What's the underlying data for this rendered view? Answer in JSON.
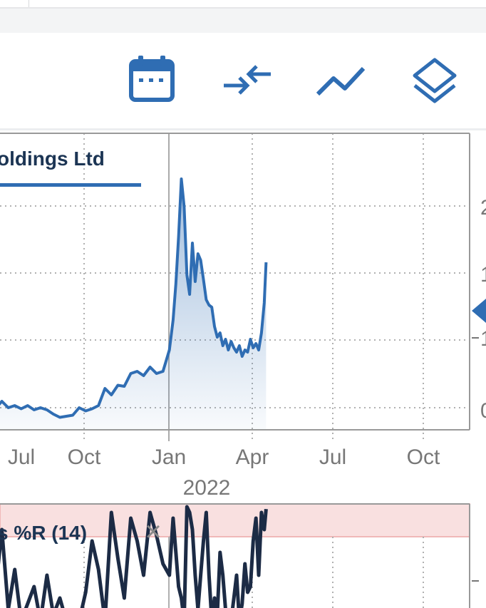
{
  "toolbar": {
    "icons": [
      "calendar-icon",
      "compare-arrows-icon",
      "line-chart-icon",
      "layers-icon"
    ],
    "accent": "#2f6db3"
  },
  "chart_data": [
    {
      "type": "area",
      "title": "oldings Ltd",
      "x_tick_labels": [
        "Jul",
        "Oct",
        "Jan",
        "Apr",
        "Jul",
        "Oct"
      ],
      "year_label": "2022",
      "y_tick_labels": [
        "2",
        "1",
        "1",
        "0"
      ],
      "grid": true,
      "series": [
        {
          "color": "#2f6db3",
          "x": [
            "2021-05-29",
            "2021-06-05",
            "2021-06-12",
            "2021-06-19",
            "2021-06-26",
            "2021-07-03",
            "2021-07-10",
            "2021-07-17",
            "2021-07-24",
            "2021-07-31",
            "2021-08-07",
            "2021-08-14",
            "2021-08-21",
            "2021-08-28",
            "2021-09-04",
            "2021-09-11",
            "2021-09-18",
            "2021-09-25",
            "2021-10-02",
            "2021-10-09",
            "2021-10-16",
            "2021-10-23",
            "2021-10-30",
            "2021-11-06",
            "2021-11-13",
            "2021-11-20",
            "2021-11-27",
            "2021-12-04",
            "2021-12-11",
            "2021-12-18",
            "2021-12-25",
            "2022-01-01",
            "2022-01-05",
            "2022-01-08",
            "2022-01-11",
            "2022-01-14",
            "2022-01-17",
            "2022-01-20",
            "2022-01-23",
            "2022-01-26",
            "2022-01-29",
            "2022-02-01",
            "2022-02-04",
            "2022-02-07",
            "2022-02-10",
            "2022-02-13",
            "2022-02-16",
            "2022-02-19",
            "2022-02-22",
            "2022-02-25",
            "2022-02-28",
            "2022-03-03",
            "2022-03-06",
            "2022-03-09",
            "2022-03-12",
            "2022-03-15",
            "2022-03-18",
            "2022-03-21",
            "2022-03-24",
            "2022-03-27",
            "2022-03-30",
            "2022-04-02",
            "2022-04-05",
            "2022-04-08",
            "2022-04-11",
            "2022-04-14",
            "2022-04-16"
          ],
          "y": [
            0.03,
            0.02,
            0.03,
            0.02,
            0.03,
            0.1,
            0.04,
            0.06,
            0.03,
            0.06,
            0.02,
            0.04,
            0.02,
            -0.02,
            -0.05,
            -0.04,
            -0.03,
            0.04,
            0.01,
            0.03,
            0.06,
            0.22,
            0.16,
            0.25,
            0.24,
            0.36,
            0.38,
            0.34,
            0.42,
            0.36,
            0.38,
            0.58,
            0.86,
            1.2,
            1.64,
            2.18,
            1.92,
            1.28,
            1.1,
            1.58,
            1.22,
            1.48,
            1.42,
            1.24,
            1.05,
            1.0,
            0.98,
            0.8,
            0.7,
            0.74,
            0.62,
            0.68,
            0.58,
            0.66,
            0.6,
            0.56,
            0.62,
            0.52,
            0.58,
            0.56,
            0.68,
            0.6,
            0.64,
            0.58,
            0.74,
            1.02,
            1.4
          ]
        }
      ]
    },
    {
      "type": "line",
      "title": "s %R (14)",
      "close_symbol": "×",
      "series": [
        {
          "color": "#1c2b45",
          "y": [
            -60,
            -80,
            -40,
            -100,
            -75,
            -20,
            -90,
            -55,
            -100,
            -85,
            -70,
            -100,
            -60,
            -95,
            -80,
            -100,
            -100,
            -100,
            -75,
            -30,
            -55,
            -100,
            -5,
            -45,
            -80,
            -10,
            -30,
            -60,
            -5,
            -25,
            -50,
            -60,
            -10,
            -40,
            -70,
            -80,
            -100,
            0,
            -5,
            -20,
            -60,
            -90,
            -60,
            -30,
            -5,
            -60,
            -100,
            -80,
            -95,
            -40,
            -60,
            -90,
            -100,
            -100,
            -80,
            -60,
            -100,
            -85,
            -50,
            -75,
            -70,
            -30,
            -10,
            -60,
            -5,
            -20,
            -2
          ]
        }
      ]
    }
  ]
}
